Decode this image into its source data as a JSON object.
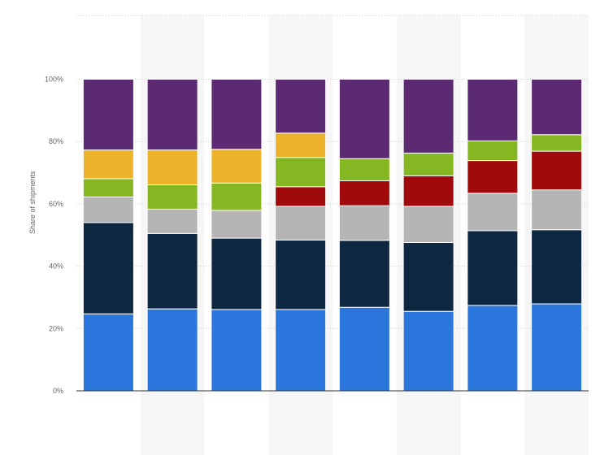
{
  "chart_data": {
    "type": "bar",
    "stacked": true,
    "title": "",
    "xlabel": "",
    "ylabel": "Share of shipments",
    "ylim": [
      0,
      100
    ],
    "y_ticks": [
      "0%",
      "20%",
      "40%",
      "60%",
      "80%",
      "100%"
    ],
    "categories": [
      "",
      "",
      "",
      "",
      "",
      "",
      "",
      ""
    ],
    "grid": true,
    "legend": "none",
    "series": [
      {
        "color": "#2a76dd",
        "values": [
          24.7,
          26.3,
          26.1,
          26.1,
          26.8,
          25.5,
          27.4,
          27.9
        ]
      },
      {
        "color": "#0e2841",
        "values": [
          29.3,
          24.2,
          22.9,
          22.3,
          21.5,
          22.1,
          24.0,
          23.8
        ]
      },
      {
        "color": "#b5b5b5",
        "values": [
          8.2,
          7.8,
          8.9,
          10.8,
          11.1,
          11.6,
          12.0,
          12.8
        ]
      },
      {
        "color": "#a10a0a",
        "values": [
          0,
          0,
          0,
          6.3,
          8.0,
          9.8,
          10.5,
          12.4
        ]
      },
      {
        "color": "#85b723",
        "values": [
          5.9,
          7.8,
          8.8,
          9.4,
          7.1,
          7.3,
          6.3,
          5.3
        ]
      },
      {
        "color": "#ebb22a",
        "values": [
          9.2,
          11.2,
          10.8,
          7.8,
          0,
          0,
          0,
          0
        ]
      },
      {
        "color": "#5c2a72",
        "values": [
          22.7,
          22.7,
          22.5,
          17.3,
          25.5,
          23.7,
          19.8,
          17.8
        ]
      }
    ]
  },
  "colors": {
    "band": "#f6f6f6",
    "grid": "#cccccc",
    "axis": "#333333"
  }
}
